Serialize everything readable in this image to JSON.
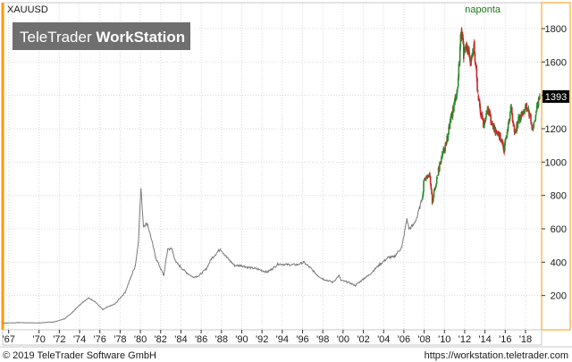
{
  "header": {
    "symbol": "XAUUSD",
    "period": "naponta"
  },
  "watermark": {
    "brand": "TeleTrader",
    "product": "WorkStation"
  },
  "footer": {
    "copyright": "© 2019 TeleTrader Software GmbH",
    "url": "https://workstation.teletrader.com"
  },
  "colors": {
    "line": "#7a7a7a",
    "up_candle": "#2e8b2e",
    "down_candle": "#c62828",
    "price_box": "#000000",
    "accent": "#ff9900",
    "grid": "#d8d8d8"
  },
  "chart_data": {
    "type": "line",
    "title": "",
    "xlabel": "",
    "ylabel": "",
    "xlim": [
      1966.5,
      2019.5
    ],
    "ylim": [
      0,
      1950
    ],
    "y_ticks": [
      200,
      400,
      600,
      800,
      1000,
      1200,
      1400,
      1600,
      1800
    ],
    "x_tick_labels": [
      "'67",
      "'70",
      "'72",
      "'74",
      "'76",
      "'78",
      "'80",
      "'82",
      "'84",
      "'86",
      "'88",
      "'90",
      "'92",
      "'94",
      "'96",
      "'98",
      "'00",
      "'02",
      "'04",
      "'06",
      "'08",
      "'10",
      "'12",
      "'14",
      "'16",
      "'18"
    ],
    "x_tick_years": [
      1967,
      1970,
      1972,
      1974,
      1976,
      1978,
      1980,
      1982,
      1984,
      1986,
      1988,
      1990,
      1992,
      1994,
      1996,
      1998,
      2000,
      2002,
      2004,
      2006,
      2008,
      2010,
      2012,
      2014,
      2016,
      2018
    ],
    "last_price": "1393",
    "last_price_value": 1393,
    "grid": true,
    "series": [
      {
        "style": "line",
        "x": [
          1966.5,
          1968.0,
          1970.0,
          1971.5,
          1972.5,
          1973.3,
          1973.6,
          1974.3,
          1974.9,
          1975.5,
          1976.3,
          1976.7,
          1977.5,
          1978.5,
          1979.0,
          1979.5,
          1979.8,
          1980.05,
          1980.3,
          1980.7,
          1981.0,
          1981.5,
          1982.3,
          1982.7,
          1983.1,
          1983.5,
          1984.5,
          1985.2,
          1985.8,
          1986.5,
          1987.0,
          1987.9,
          1988.5,
          1989.3,
          1990.0,
          1990.5,
          1991.5,
          1992.5,
          1993.0,
          1993.6,
          1994.5,
          1995.5,
          1996.1,
          1996.7,
          1997.5,
          1998.0,
          1999.0,
          1999.6,
          1999.8,
          2000.5,
          2001.2,
          2002.0,
          2002.5,
          2003.5,
          2004.5,
          2005.0,
          2005.8,
          2006.3,
          2006.5,
          2006.9,
          2007.3,
          2007.8
        ],
        "y": [
          35,
          38,
          36,
          42,
          60,
          100,
          120,
          160,
          185,
          165,
          115,
          130,
          150,
          220,
          300,
          380,
          520,
          840,
          620,
          630,
          560,
          430,
          320,
          480,
          480,
          400,
          340,
          310,
          320,
          360,
          420,
          480,
          430,
          380,
          380,
          370,
          360,
          340,
          360,
          390,
          385,
          385,
          400,
          370,
          320,
          300,
          280,
          320,
          290,
          280,
          260,
          300,
          320,
          380,
          430,
          430,
          490,
          660,
          600,
          620,
          670,
          780
        ]
      },
      {
        "style": "candles",
        "x": [
          2008.0,
          2008.5,
          2008.8,
          2009.3,
          2009.8,
          2010.2,
          2010.6,
          2011.0,
          2011.3,
          2011.65,
          2011.9,
          2012.2,
          2012.6,
          2012.9,
          2013.3,
          2013.6,
          2013.9,
          2014.3,
          2014.8,
          2015.3,
          2015.9,
          2016.3,
          2016.6,
          2016.9,
          2017.3,
          2017.7,
          2018.0,
          2018.3,
          2018.7,
          2019.0,
          2019.4
        ],
        "y": [
          900,
          930,
          760,
          920,
          1050,
          1120,
          1250,
          1360,
          1450,
          1800,
          1650,
          1700,
          1600,
          1720,
          1400,
          1290,
          1220,
          1320,
          1200,
          1180,
          1070,
          1250,
          1330,
          1170,
          1250,
          1290,
          1330,
          1310,
          1200,
          1290,
          1393
        ]
      }
    ]
  }
}
